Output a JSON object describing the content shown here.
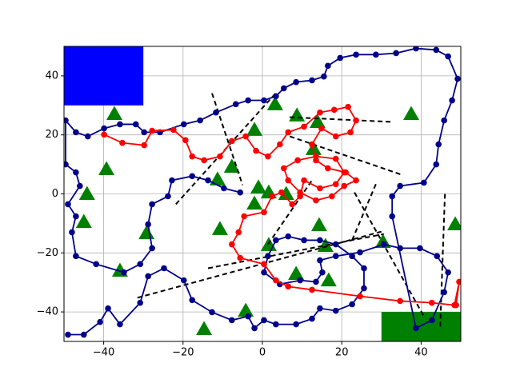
{
  "chart_data": {
    "type": "line",
    "xlim": [
      -50,
      50
    ],
    "ylim": [
      -50,
      50
    ],
    "xticks": [
      {
        "value": -40,
        "label": "−40"
      },
      {
        "value": -20,
        "label": "−20"
      },
      0,
      20,
      40
    ],
    "yticks": [
      {
        "value": -40,
        "label": "−40"
      },
      {
        "value": -20,
        "label": "−20"
      },
      0,
      20,
      40
    ],
    "grid": true,
    "regions": [
      {
        "color": "#0000ff",
        "x": [
          -50,
          -30
        ],
        "y": [
          30,
          50
        ]
      },
      {
        "color": "#008000",
        "x": [
          30,
          50
        ],
        "y": [
          -50,
          -40
        ]
      }
    ],
    "obstacles": {
      "color": "#008000",
      "marker": "triangle",
      "x": [
        -37.3,
        -39.3,
        -44.2,
        -45,
        -35.9,
        -29.2,
        -14.7,
        -4.2,
        -10.7,
        -11.3,
        -7.7,
        -2,
        3.2,
        8.7,
        13.9,
        12.9,
        -1,
        1.6,
        -2,
        6,
        1.6,
        14.3,
        15.9,
        8.5,
        16.7,
        30.4,
        37.5,
        48.6
      ],
      "y": [
        27.1,
        8.4,
        0,
        -9.5,
        -26,
        -13.3,
        -45.8,
        -39.6,
        -11.9,
        4.9,
        9.2,
        21.7,
        30.4,
        26.6,
        24.4,
        15.2,
        2.2,
        0.5,
        -3.3,
        0,
        -17.3,
        -10.6,
        -17.6,
        -27.1,
        -29.3,
        -16.3,
        27.1,
        -10.3
      ]
    },
    "segments": {
      "color": "#000000",
      "style": "dashed",
      "lines": [
        {
          "x": [
            -12.7,
            -5
          ],
          "y": [
            34.1,
            3
          ]
        },
        {
          "x": [
            -21.8,
            3.6
          ],
          "y": [
            -3.5,
            34.5
          ]
        },
        {
          "x": [
            6.9,
            32.7
          ],
          "y": [
            26,
            24.4
          ]
        },
        {
          "x": [
            6.9,
            35.1
          ],
          "y": [
            19.5,
            6.5
          ]
        },
        {
          "x": [
            46,
            44.8
          ],
          "y": [
            0,
            -45.5
          ]
        },
        {
          "x": [
            23.2,
            40.7
          ],
          "y": [
            0.5,
            -41.5
          ]
        },
        {
          "x": [
            -31.5,
            30.2
          ],
          "y": [
            -35.2,
            -12.7
          ]
        },
        {
          "x": [
            -13.7,
            30.6
          ],
          "y": [
            -25.2,
            -13.6
          ]
        },
        {
          "x": [
            1.4,
            12.5
          ],
          "y": [
            -17.1,
            4.6
          ]
        },
        {
          "x": [
            28.6,
            22.6
          ],
          "y": [
            3.3,
            -15.7
          ]
        }
      ]
    },
    "series": [
      {
        "color": "#00008b",
        "marker": "circle",
        "x": [
          -49,
          -45,
          -40.9,
          -38.9,
          -35.9,
          -30.8,
          -28.8,
          -24.8,
          -19.8,
          -17.7,
          -12.7,
          -7.7,
          -3.6,
          -2,
          0.4,
          3.4,
          8.5,
          12.5,
          14.5,
          18.5,
          22.6,
          25.6,
          25.6,
          22.6,
          18.5,
          14.5,
          10.5,
          6.5,
          3.4,
          1.4,
          0.4,
          4.4,
          9.5,
          13.5,
          15.1,
          14.5,
          18.5,
          24.6,
          30.6,
          34.7,
          39.7,
          44,
          46.8,
          45.8,
          42.7,
          38.7,
          32.7,
          32.7,
          34.7,
          40.7,
          43.8,
          44.4,
          45.8,
          47.8,
          49.2,
          46.8,
          43.8,
          38.7,
          33.7,
          28.6,
          23.6,
          19.6,
          16.5,
          15.5,
          12.5,
          8.5,
          5.4,
          3.4,
          0.4,
          -3.6,
          -6.7,
          -11.7,
          -15.7,
          -19.8,
          -25.8,
          -29.8,
          -31.9,
          -35.9,
          -39.9,
          -44,
          -47,
          -49.6,
          -49.6,
          -47,
          -46,
          -49,
          -47,
          -48,
          -47,
          -41.9,
          -34.9,
          -30.8,
          -27.8,
          -28.8,
          -27.8,
          -23.8,
          -22.8,
          -17.7,
          -13.7,
          -9.7,
          -5.6
        ],
        "values": [
          -47.7,
          -47.7,
          -43.4,
          -38.8,
          -44.2,
          -36.9,
          -27.9,
          -25.2,
          -29.3,
          -36,
          -40.1,
          -42.8,
          -41.5,
          -45.5,
          -42.8,
          -44.2,
          -44.2,
          -42.3,
          -38.8,
          -39.6,
          -37.4,
          -32,
          -25.2,
          -21.1,
          -17.1,
          -15.7,
          -15.7,
          -14.4,
          -15.7,
          -21.1,
          -26.6,
          -30.6,
          -29.3,
          -29.8,
          -26.6,
          -22.5,
          -21.1,
          -19.8,
          -17.1,
          -18.4,
          -18.4,
          -21.1,
          -26.6,
          -33.3,
          -42.8,
          -45.5,
          -7.6,
          -0.8,
          2.7,
          3.8,
          10,
          16.8,
          24.9,
          31.7,
          39,
          46.6,
          48.8,
          49.3,
          47.7,
          47.2,
          47.2,
          46.1,
          43.4,
          39.8,
          38.5,
          37.9,
          35.8,
          33.1,
          31.7,
          31.7,
          30.4,
          27.6,
          24.9,
          23.6,
          20.9,
          20.9,
          23.6,
          23.6,
          22.2,
          19.5,
          20.9,
          24.9,
          10,
          7.3,
          2.7,
          -3.5,
          -7.6,
          -13,
          -21.1,
          -23.8,
          -26.6,
          -23.8,
          -18.4,
          -10.3,
          -3.5,
          -0.8,
          4.6,
          6,
          4.6,
          1.9,
          0.5
        ]
      },
      {
        "color": "#ff0000",
        "marker": "circle",
        "x": [
          -39.9,
          -35.3,
          -29.8,
          -27.8,
          -22.4,
          -19.4,
          -17.7,
          -14.7,
          -10.7,
          -7.7,
          -4.2,
          -1.6,
          1.4,
          4.4,
          6.5,
          10.5,
          14.5,
          18.1,
          21.6,
          23.6,
          22.2,
          18.5,
          14.9,
          12.5,
          13.5,
          16.5,
          21,
          23.6,
          20.6,
          17.5,
          13.5,
          9.5,
          6.5,
          5.4,
          8.9,
          13.5,
          18.5,
          20.6,
          18.5,
          14.5,
          10.5,
          9.5,
          7.5,
          4.8,
          2.4,
          0.4,
          -4.6,
          -6,
          -7.7,
          -5.6,
          0.4,
          3.4,
          6.5,
          12.5,
          24.6,
          34.7,
          42.7,
          48.4,
          49.6,
          48.8
        ],
        "values": [
          20.1,
          17.3,
          16.5,
          21.4,
          21.7,
          18.2,
          12.7,
          11.4,
          12.7,
          17.9,
          19.5,
          14.6,
          12.7,
          16.8,
          20.9,
          22.8,
          27.6,
          28.5,
          29.5,
          24.9,
          20.9,
          19.5,
          22.2,
          16.8,
          11.4,
          8.7,
          7.3,
          4.6,
          2.7,
          -0.8,
          -2.2,
          0.5,
          4.6,
          8.7,
          11.4,
          12.7,
          11.9,
          7.3,
          3.3,
          1.9,
          4.6,
          -0.8,
          -3.5,
          0.5,
          -0.8,
          -6.2,
          -7.6,
          -13,
          -17.1,
          -21.7,
          -23.8,
          -29.3,
          -31.4,
          -32.5,
          -34.7,
          -36.3,
          -36.9,
          -37.7,
          -29.8,
          -37.7
        ]
      }
    ]
  }
}
